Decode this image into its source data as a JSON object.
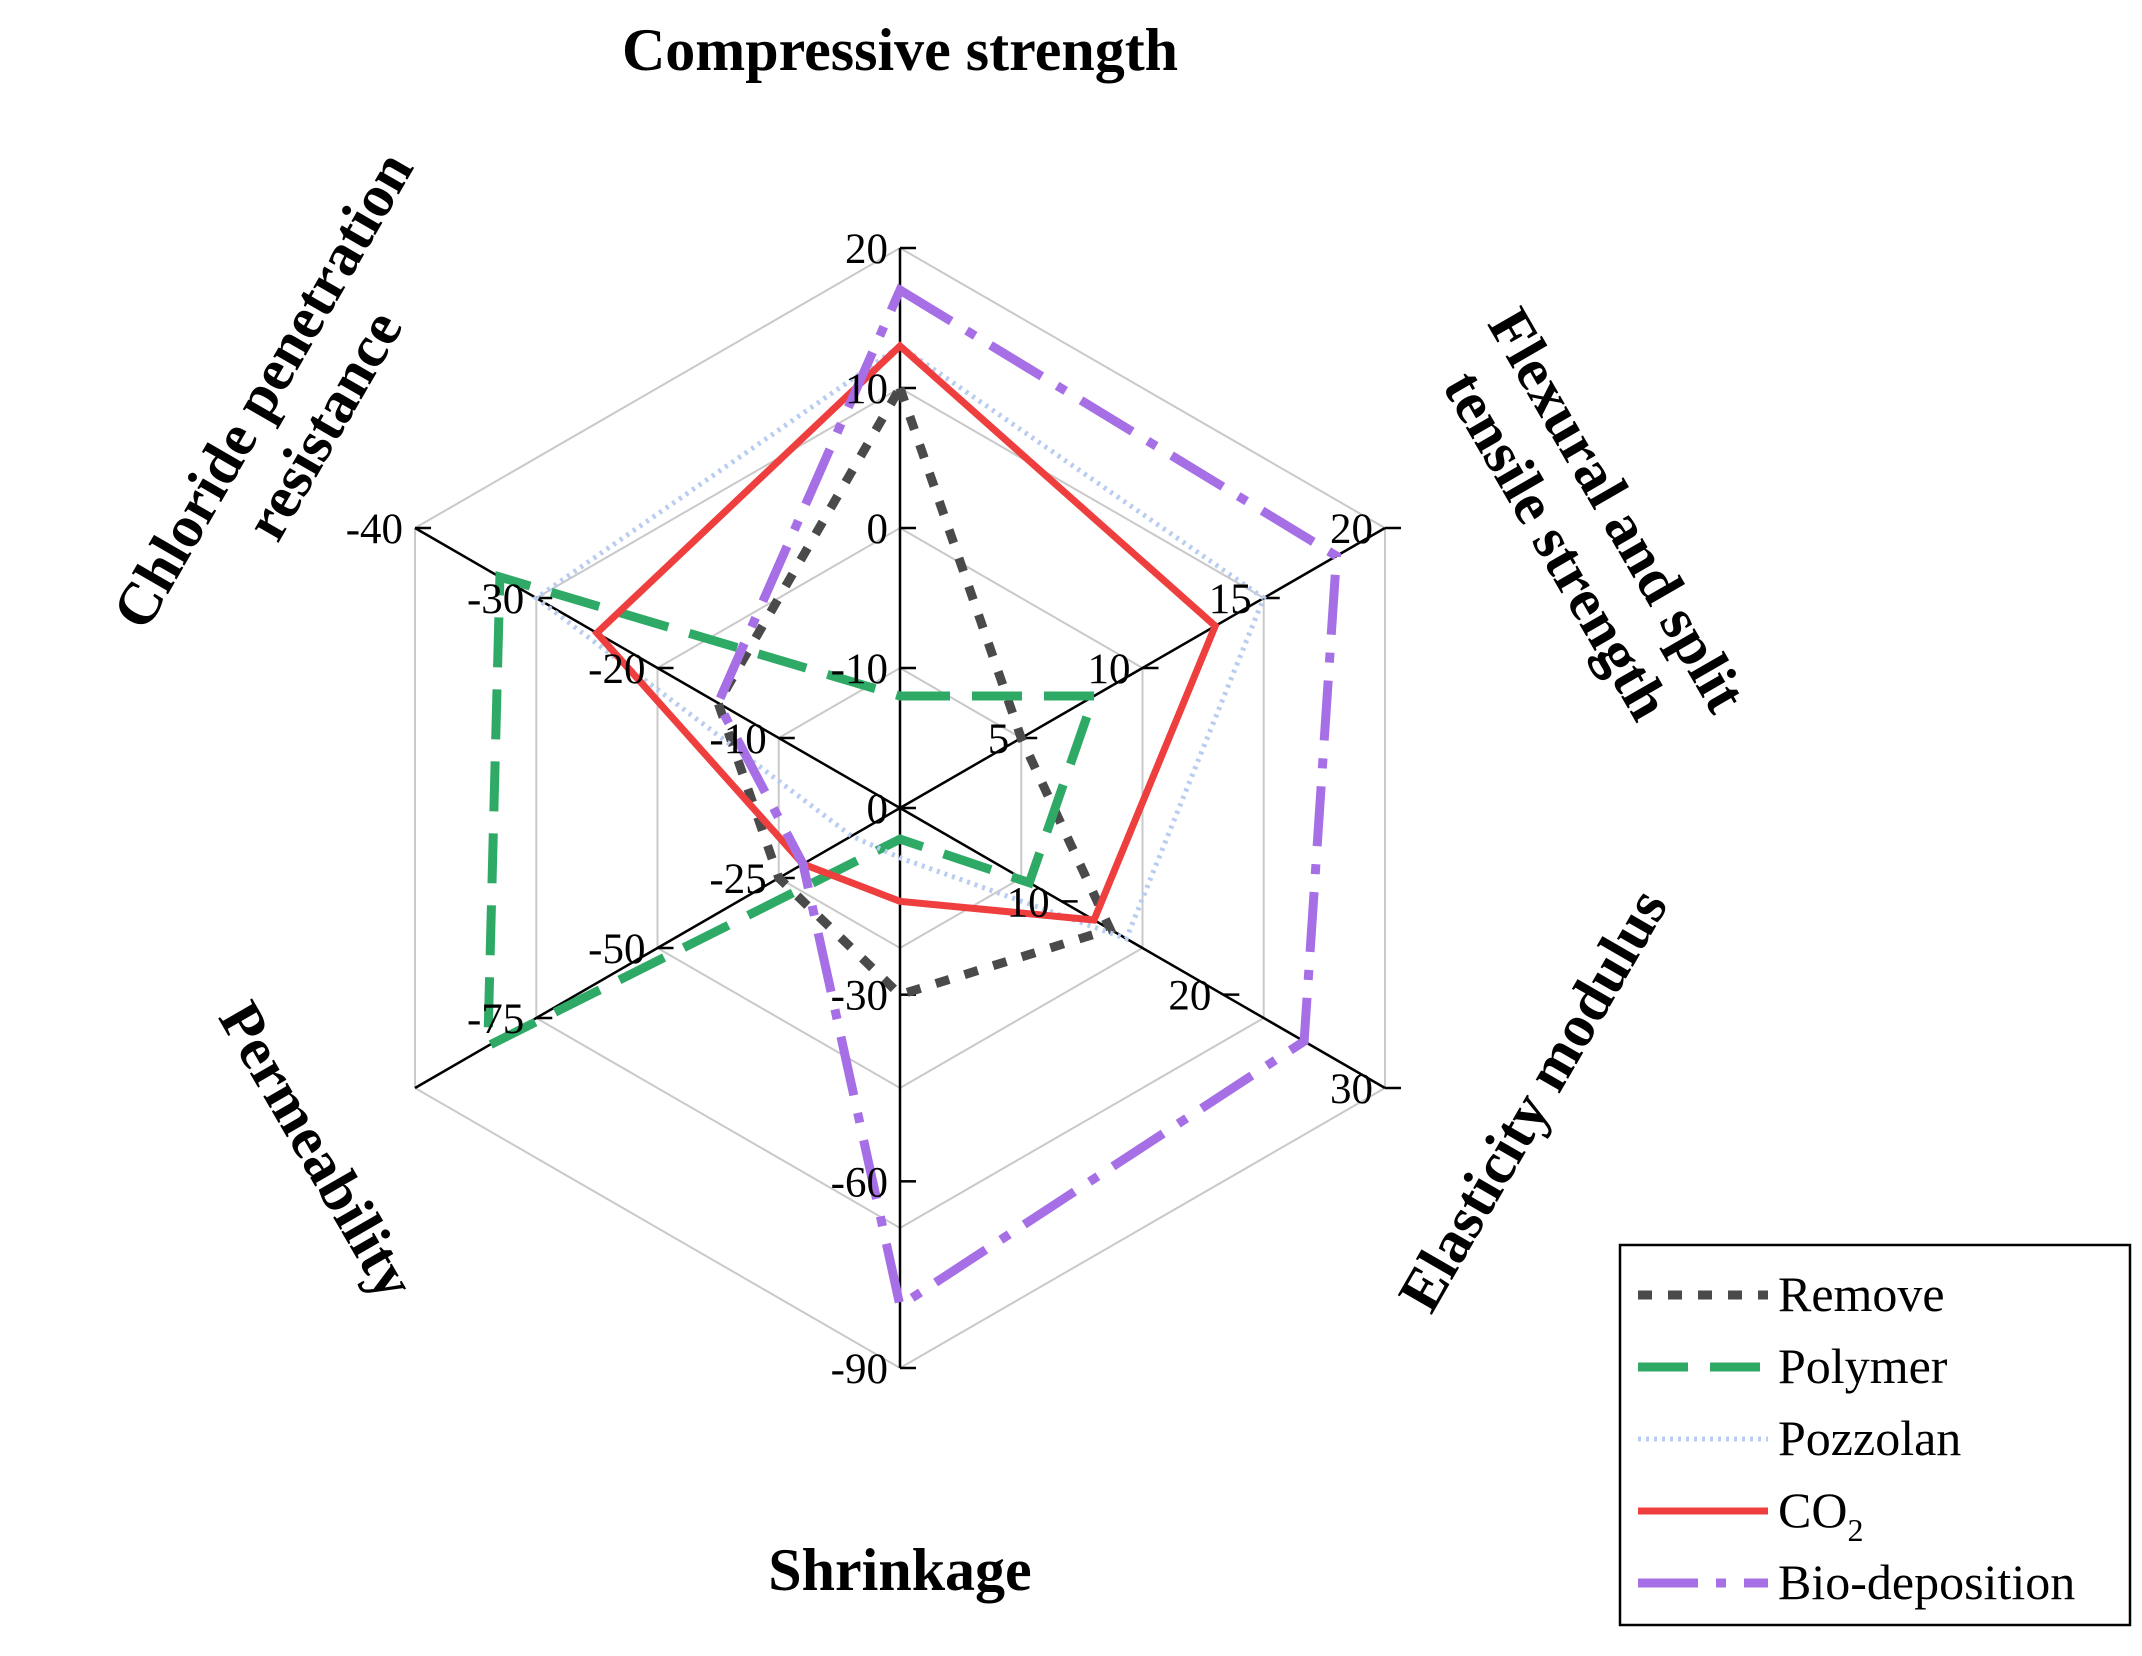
{
  "chart_data": {
    "type": "radar",
    "title": "",
    "axes": [
      {
        "title_lines": [
          "Compressive strength"
        ],
        "range": [
          -20,
          20
        ],
        "ticks": [
          {
            "label": "20",
            "value": 20
          },
          {
            "label": "10",
            "value": 10
          },
          {
            "label": "0",
            "value": 0
          },
          {
            "label": "-10",
            "value": -10
          }
        ]
      },
      {
        "title_lines": [
          "Flexural and split",
          "tensile strength"
        ],
        "range": [
          0,
          20
        ],
        "ticks": [
          {
            "label": "20",
            "value": 20
          },
          {
            "label": "15",
            "value": 15
          },
          {
            "label": "10",
            "value": 10
          },
          {
            "label": "5",
            "value": 5
          }
        ]
      },
      {
        "title_lines": [
          "Elasticity modulus"
        ],
        "range": [
          0,
          30
        ],
        "ticks": [
          {
            "label": "30",
            "value": 30
          },
          {
            "label": "20",
            "value": 20
          },
          {
            "label": "10",
            "value": 10
          }
        ]
      },
      {
        "title_lines": [
          "Shrinkage"
        ],
        "range": [
          0,
          -90
        ],
        "ticks": [
          {
            "label": "0",
            "value": 0
          },
          {
            "label": "-30",
            "value": -30
          },
          {
            "label": "-60",
            "value": -60
          },
          {
            "label": "-90",
            "value": -90
          }
        ]
      },
      {
        "title_lines": [
          "Permeability"
        ],
        "range": [
          0,
          -100
        ],
        "ticks": [
          {
            "label": "-25",
            "value": -25
          },
          {
            "label": "-50",
            "value": -50
          },
          {
            "label": "-75",
            "value": -75
          }
        ]
      },
      {
        "title_lines": [
          "Chloride penetration",
          "resistance"
        ],
        "range": [
          0,
          -40
        ],
        "ticks": [
          {
            "label": "-10",
            "value": -10
          },
          {
            "label": "-20",
            "value": -20
          },
          {
            "label": "-30",
            "value": -30
          },
          {
            "label": "-40",
            "value": -40
          }
        ]
      }
    ],
    "series": [
      {
        "name": "Remove",
        "color": "#4a4a4a",
        "dash": "dot",
        "values": [
          10,
          5,
          13,
          -30,
          -25,
          -15
        ]
      },
      {
        "name": "Polymer",
        "color": "#2eaa66",
        "dash": "dash",
        "values": [
          -12,
          8,
          8,
          -5,
          -85,
          -33
        ]
      },
      {
        "name": "Pozzolan",
        "color": "#b8cdf0",
        "dash": "dotted-light",
        "values": [
          13,
          15,
          14,
          -8,
          -10,
          -30
        ]
      },
      {
        "name": "CO",
        "subscript": "2",
        "color": "#ef3e3e",
        "dash": "solid",
        "values": [
          13,
          13,
          12,
          -15,
          -20,
          -25
        ]
      },
      {
        "name": "Bio-deposition",
        "color": "#a66fe6",
        "dash": "dashdot",
        "values": [
          17,
          18,
          25,
          -80,
          -20,
          -15
        ]
      }
    ],
    "grid": true,
    "legend": "bottom-right"
  }
}
